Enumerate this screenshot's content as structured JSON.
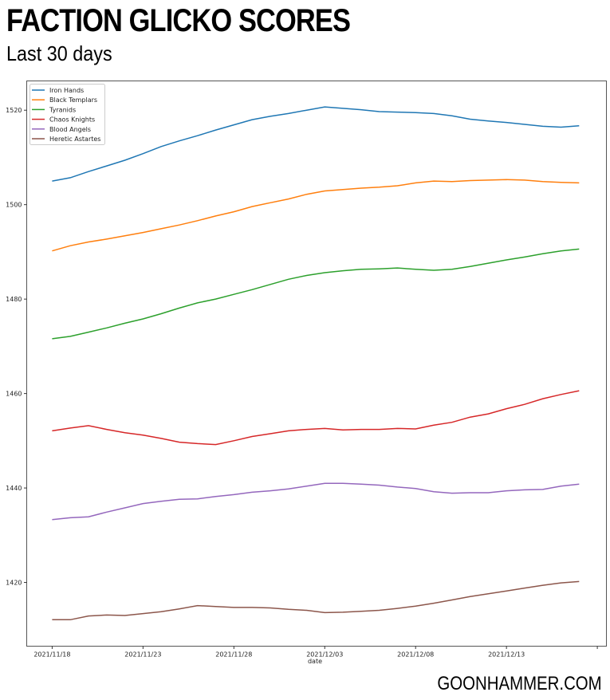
{
  "header": {
    "title": "FACTION GLICKO SCORES",
    "subtitle": "Last 30 days"
  },
  "footer": {
    "brand": "GOONHAMMER.COM"
  },
  "chart_data": {
    "type": "line",
    "title": "FACTION GLICKO SCORES",
    "subtitle": "Last 30 days",
    "xlabel": "date",
    "ylabel": "",
    "x_start": "2021-11-18",
    "x_days": 30,
    "xlim_days": [
      -1.4,
      30.5
    ],
    "xticks": [
      {
        "day": 0,
        "label": "2021/11/18"
      },
      {
        "day": 5,
        "label": "2021/11/23"
      },
      {
        "day": 10,
        "label": "2021/11/28"
      },
      {
        "day": 15,
        "label": "2021/12/03"
      },
      {
        "day": 20,
        "label": "2021/12/08"
      },
      {
        "day": 25,
        "label": "2021/12/13"
      },
      {
        "day": 30,
        "label": ""
      }
    ],
    "ylim": [
      1406.5,
      1526.2
    ],
    "yticks": [
      1420,
      1440,
      1460,
      1480,
      1500,
      1520
    ],
    "grid": false,
    "legend_position": "top-left",
    "series": [
      {
        "name": "Iron Hands",
        "color": "#1f77b4",
        "values": [
          1505.0,
          1505.7,
          1507.0,
          1508.2,
          1509.4,
          1510.8,
          1512.3,
          1513.5,
          1514.6,
          1515.8,
          1516.9,
          1518.0,
          1518.7,
          1519.3,
          1520.0,
          1520.7,
          1520.4,
          1520.1,
          1519.7,
          1519.6,
          1519.5,
          1519.3,
          1518.8,
          1518.1,
          1517.7,
          1517.4,
          1517.0,
          1516.6,
          1516.4,
          1516.7
        ]
      },
      {
        "name": "Black Templars",
        "color": "#ff7f0e",
        "values": [
          1490.2,
          1491.3,
          1492.1,
          1492.7,
          1493.4,
          1494.1,
          1494.9,
          1495.7,
          1496.6,
          1497.6,
          1498.5,
          1499.6,
          1500.4,
          1501.2,
          1502.2,
          1502.9,
          1503.2,
          1503.5,
          1503.7,
          1504.0,
          1504.6,
          1505.0,
          1504.9,
          1505.1,
          1505.2,
          1505.3,
          1505.2,
          1504.9,
          1504.7,
          1504.6
        ]
      },
      {
        "name": "Tyranids",
        "color": "#2ca02c",
        "values": [
          1471.6,
          1472.1,
          1473.0,
          1473.9,
          1474.9,
          1475.8,
          1476.9,
          1478.1,
          1479.2,
          1480.0,
          1481.0,
          1482.0,
          1483.1,
          1484.2,
          1485.0,
          1485.6,
          1486.0,
          1486.3,
          1486.4,
          1486.6,
          1486.3,
          1486.1,
          1486.3,
          1486.9,
          1487.6,
          1488.3,
          1488.9,
          1489.6,
          1490.2,
          1490.6
        ]
      },
      {
        "name": "Chaos Knights",
        "color": "#d62728",
        "values": [
          1452.1,
          1452.7,
          1453.2,
          1452.4,
          1451.7,
          1451.2,
          1450.5,
          1449.7,
          1449.4,
          1449.2,
          1450.0,
          1450.9,
          1451.5,
          1452.1,
          1452.4,
          1452.6,
          1452.3,
          1452.4,
          1452.4,
          1452.6,
          1452.5,
          1453.3,
          1453.9,
          1455.0,
          1455.7,
          1456.8,
          1457.7,
          1458.9,
          1459.8,
          1460.6
        ]
      },
      {
        "name": "Blood Angels",
        "color": "#9467bd",
        "values": [
          1433.3,
          1433.7,
          1433.9,
          1434.9,
          1435.8,
          1436.7,
          1437.2,
          1437.6,
          1437.7,
          1438.2,
          1438.6,
          1439.1,
          1439.4,
          1439.8,
          1440.4,
          1441.0,
          1441.0,
          1440.8,
          1440.6,
          1440.2,
          1439.9,
          1439.2,
          1438.9,
          1439.0,
          1439.0,
          1439.4,
          1439.6,
          1439.7,
          1440.4,
          1440.8
        ]
      },
      {
        "name": "Heretic Astartes",
        "color": "#8c564b",
        "values": [
          1412.1,
          1412.1,
          1412.9,
          1413.1,
          1413.0,
          1413.4,
          1413.8,
          1414.4,
          1415.1,
          1414.9,
          1414.7,
          1414.7,
          1414.6,
          1414.3,
          1414.1,
          1413.6,
          1413.7,
          1413.9,
          1414.1,
          1414.5,
          1415.0,
          1415.6,
          1416.3,
          1417.0,
          1417.6,
          1418.2,
          1418.8,
          1419.4,
          1419.9,
          1420.2
        ]
      }
    ]
  }
}
